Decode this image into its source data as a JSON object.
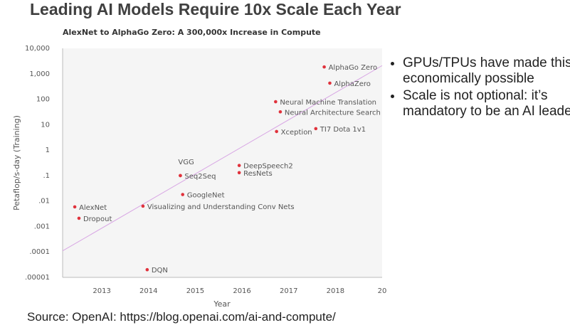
{
  "title": "Leading AI Models Require 10x Scale Each Year",
  "bullets": [
    "GPUs/TPUs have made this economically possible",
    "Scale is not optional: it’s mandatory to be an AI leader"
  ],
  "source": "Source: OpenAI: https://blog.openai.com/ai-and-compute/",
  "chart_data": {
    "type": "scatter",
    "title": "AlexNet to AlphaGo Zero: A 300,000x Increase in Compute",
    "x_label": "Year",
    "y_label": "Petaflop/s-day (Training)",
    "yscale": "log",
    "xlim": [
      2012.16,
      2019
    ],
    "ylim": [
      1e-05,
      10000
    ],
    "xticks": [
      2013,
      2014,
      2015,
      2016,
      2017,
      2018,
      {
        "value": 2019,
        "label": "20"
      }
    ],
    "yticks": [
      {
        "value": 10000,
        "label": "10,000"
      },
      {
        "value": 1000,
        "label": "1,000"
      },
      100,
      10,
      1,
      {
        "value": 0.1,
        "label": ".1"
      },
      {
        "value": 0.01,
        "label": ".01"
      },
      {
        "value": 0.001,
        "label": ".001"
      },
      {
        "value": 0.0001,
        "label": ".0001"
      },
      {
        "value": 1e-05,
        "label": ".00001"
      }
    ],
    "grid": false,
    "series": [
      {
        "color": "#e0323c",
        "labels": [
          "AlexNet",
          "Dropout",
          "DQN",
          "Visualizing and Understanding Conv Nets",
          "GoogleNet",
          "VGG",
          "Seq2Seq",
          "DeepSpeech2",
          "ResNets",
          "Neural Machine Translation",
          "Neural Architecture Search",
          "Xception",
          "TI7 Dota 1v1",
          "AlphaGo Zero",
          "AlphaZero"
        ],
        "x": [
          2012.42,
          2012.51,
          2013.97,
          2013.88,
          2014.73,
          2014.68,
          2014.68,
          2015.94,
          2015.94,
          2016.72,
          2016.82,
          2016.74,
          2017.58,
          2017.76,
          2017.88
        ],
        "values": [
          0.0059,
          0.0021,
          2e-05,
          0.0063,
          0.018,
          0.1,
          0.1,
          0.25,
          0.13,
          80,
          32,
          5.4,
          7,
          1860,
          430
        ]
      }
    ],
    "trendline": {
      "color": "#d8a6e4",
      "x": [
        2012.16,
        2019
      ],
      "values": [
        0.00011,
        2100
      ]
    }
  }
}
